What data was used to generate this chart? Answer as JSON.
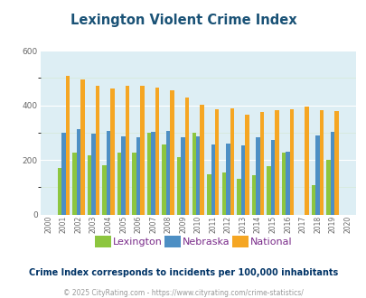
{
  "title": "Lexington Violent Crime Index",
  "subtitle": "Crime Index corresponds to incidents per 100,000 inhabitants",
  "footer": "© 2025 CityRating.com - https://www.cityrating.com/crime-statistics/",
  "years": [
    2000,
    2001,
    2002,
    2003,
    2004,
    2005,
    2006,
    2007,
    2008,
    2009,
    2010,
    2011,
    2012,
    2013,
    2014,
    2015,
    2016,
    2017,
    2018,
    2019,
    2020
  ],
  "lexington": [
    0,
    170,
    228,
    217,
    180,
    228,
    228,
    300,
    255,
    210,
    300,
    148,
    155,
    130,
    145,
    178,
    228,
    0,
    107,
    200,
    0
  ],
  "nebraska": [
    0,
    300,
    313,
    295,
    307,
    287,
    282,
    302,
    305,
    283,
    285,
    255,
    260,
    253,
    283,
    272,
    230,
    0,
    288,
    303,
    0
  ],
  "national": [
    0,
    508,
    495,
    472,
    460,
    470,
    470,
    465,
    455,
    428,
    403,
    387,
    388,
    367,
    375,
    382,
    386,
    397,
    381,
    379,
    0
  ],
  "lexington_color": "#8dc63f",
  "nebraska_color": "#4d8fc4",
  "national_color": "#f5a623",
  "bg_color": "#ddeef4",
  "title_color": "#1a5276",
  "legend_label_color": "#7b2d8b",
  "subtitle_color": "#003366",
  "footer_color": "#999999",
  "ylim": [
    0,
    600
  ],
  "yticks": [
    0,
    200,
    400,
    600
  ]
}
